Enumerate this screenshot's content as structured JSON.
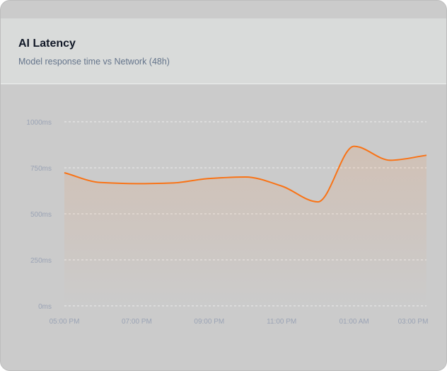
{
  "header": {
    "title": "AI Latency",
    "subtitle": "Model response time vs Network (48h)"
  },
  "chart_data": {
    "type": "area",
    "title": "AI Latency",
    "subtitle": "Model response time vs Network (48h)",
    "xlabel": "",
    "ylabel": "",
    "x_tick_labels": [
      {
        "index": 0,
        "label": "05:00 PM"
      },
      {
        "index": 2,
        "label": "07:00 PM"
      },
      {
        "index": 4,
        "label": "09:00 PM"
      },
      {
        "index": 6,
        "label": "11:00 PM"
      },
      {
        "index": 8,
        "label": "01:00 AM"
      },
      {
        "index": 10,
        "label": "03:00 PM"
      }
    ],
    "y_ticks": [
      0,
      250,
      500,
      750,
      1000
    ],
    "y_tick_suffix": "ms",
    "ylim": [
      0,
      1000
    ],
    "grid": true,
    "series": [
      {
        "values": [
          723,
          670,
          664,
          668,
          692,
          700,
          651,
          565,
          867,
          791,
          818
        ],
        "color": "#f97316"
      }
    ]
  }
}
